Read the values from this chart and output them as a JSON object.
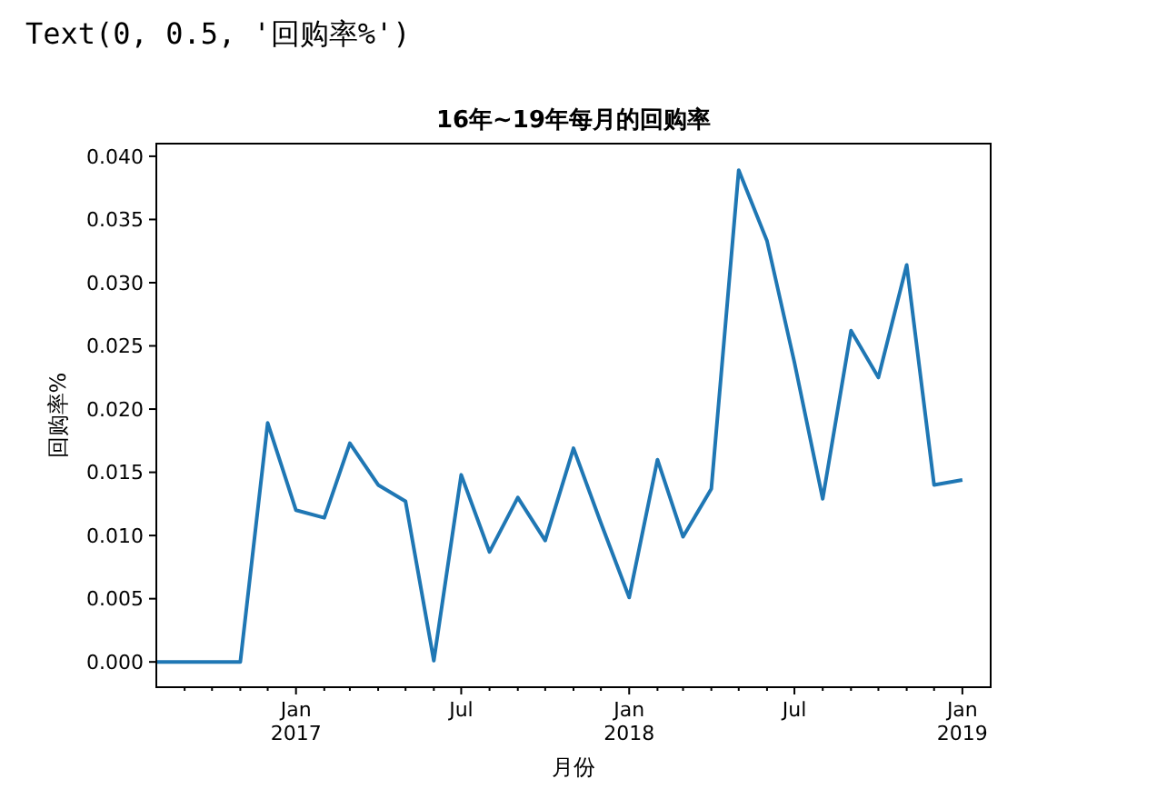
{
  "chart_data": {
    "type": "line",
    "title": "16年~19年每月的回购率",
    "xlabel": "月份",
    "ylabel": "回购率%",
    "annotations": [
      "Text(0, 0.5, '回购率%')"
    ],
    "x": [
      "2016-08",
      "2016-09",
      "2016-10",
      "2016-11",
      "2016-12",
      "2017-01",
      "2017-02",
      "2017-03",
      "2017-04",
      "2017-05",
      "2017-06",
      "2017-07",
      "2017-08",
      "2017-09",
      "2017-10",
      "2017-11",
      "2017-12",
      "2018-01",
      "2018-02",
      "2018-03",
      "2018-04",
      "2018-05",
      "2018-06",
      "2018-07",
      "2018-08",
      "2018-09",
      "2018-10",
      "2018-11",
      "2018-12",
      "2019-01"
    ],
    "series": [
      {
        "color": "#1f77b4",
        "values": [
          0,
          0,
          0,
          0,
          0.0189,
          0.012,
          0.0114,
          0.0173,
          0.014,
          0.0127,
          0.0001,
          0.0148,
          0.0087,
          0.013,
          0.0096,
          0.0169,
          0.011,
          0.0051,
          0.016,
          0.0099,
          0.0137,
          0.0389,
          0.0333,
          0.0237,
          0.0129,
          0.0262,
          0.0225,
          0.0314,
          0.014,
          0.0144
        ]
      }
    ],
    "xlim": [
      "2016-08",
      "2019-02"
    ],
    "xticks": [
      {
        "value": "2016-09",
        "label": null
      },
      {
        "value": "2016-10",
        "label": null
      },
      {
        "value": "2016-11",
        "label": null
      },
      {
        "value": "2016-12",
        "label": null
      },
      {
        "value": "2017-01",
        "label": "Jan\n2017"
      },
      {
        "value": "2017-02",
        "label": null
      },
      {
        "value": "2017-03",
        "label": null
      },
      {
        "value": "2017-04",
        "label": null
      },
      {
        "value": "2017-05",
        "label": null
      },
      {
        "value": "2017-06",
        "label": null
      },
      {
        "value": "2017-07",
        "label": "Jul"
      },
      {
        "value": "2017-08",
        "label": null
      },
      {
        "value": "2017-09",
        "label": null
      },
      {
        "value": "2017-10",
        "label": null
      },
      {
        "value": "2017-11",
        "label": null
      },
      {
        "value": "2017-12",
        "label": null
      },
      {
        "value": "2018-01",
        "label": "Jan\n2018"
      },
      {
        "value": "2018-02",
        "label": null
      },
      {
        "value": "2018-03",
        "label": null
      },
      {
        "value": "2018-04",
        "label": null
      },
      {
        "value": "2018-05",
        "label": null
      },
      {
        "value": "2018-06",
        "label": null
      },
      {
        "value": "2018-07",
        "label": "Jul"
      },
      {
        "value": "2018-08",
        "label": null
      },
      {
        "value": "2018-09",
        "label": null
      },
      {
        "value": "2018-10",
        "label": null
      },
      {
        "value": "2018-11",
        "label": null
      },
      {
        "value": "2018-12",
        "label": null
      },
      {
        "value": "2019-01",
        "label": "Jan\n2019"
      }
    ],
    "ylim": [
      -0.002,
      0.041
    ],
    "yticks": [
      {
        "value": 0,
        "label": "0.000"
      },
      {
        "value": 0.005,
        "label": "0.005"
      },
      {
        "value": 0.01,
        "label": "0.010"
      },
      {
        "value": 0.015,
        "label": "0.015"
      },
      {
        "value": 0.02,
        "label": "0.020"
      },
      {
        "value": 0.025,
        "label": "0.025"
      },
      {
        "value": 0.03,
        "label": "0.030"
      },
      {
        "value": 0.035,
        "label": "0.035"
      },
      {
        "value": 0.04,
        "label": "0.040"
      }
    ],
    "grid": false
  }
}
